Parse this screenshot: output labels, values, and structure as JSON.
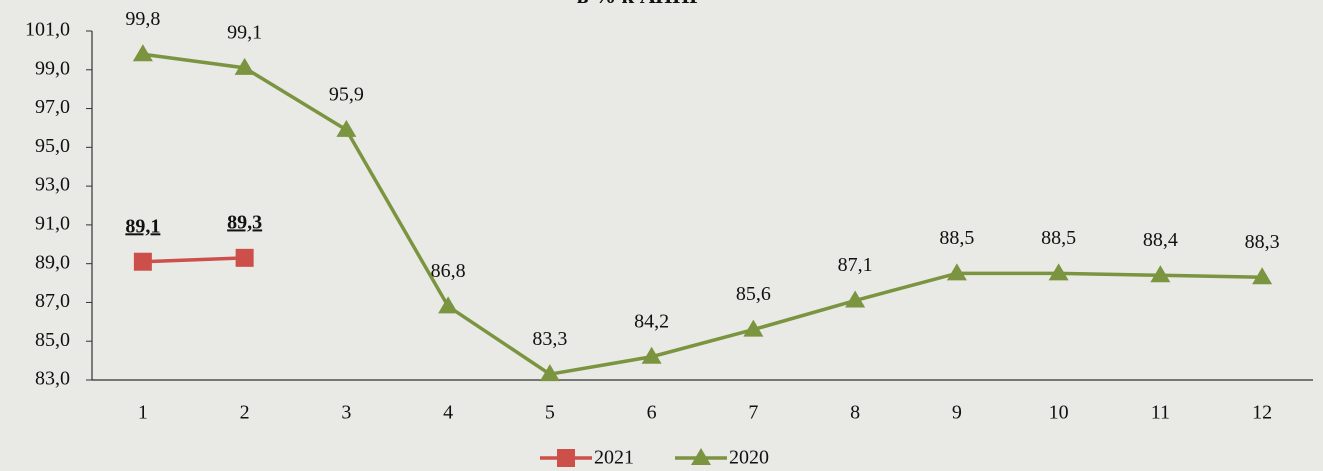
{
  "chart_data": {
    "type": "line",
    "title": "в % к АППГ",
    "categories": [
      "1",
      "2",
      "3",
      "4",
      "5",
      "6",
      "7",
      "8",
      "9",
      "10",
      "11",
      "12"
    ],
    "series": [
      {
        "name": "2021",
        "color": "#cd4f4a",
        "marker": "square",
        "values": [
          89.1,
          89.3,
          null,
          null,
          null,
          null,
          null,
          null,
          null,
          null,
          null,
          null
        ],
        "value_labels": [
          "89,1",
          "89,3",
          null,
          null,
          null,
          null,
          null,
          null,
          null,
          null,
          null,
          null
        ]
      },
      {
        "name": "2020",
        "color": "#7a9440",
        "marker": "triangle",
        "values": [
          99.8,
          99.1,
          95.9,
          86.8,
          83.3,
          84.2,
          85.6,
          87.1,
          88.5,
          88.5,
          88.4,
          88.3
        ],
        "value_labels": [
          "99,8",
          "99,1",
          "95,9",
          "86,8",
          "83,3",
          "84,2",
          "85,6",
          "87,1",
          "88,5",
          "88,5",
          "88,4",
          "88,3"
        ]
      }
    ],
    "ylim": [
      83,
      101
    ],
    "yticks": [
      {
        "value": 83,
        "label": "83,0"
      },
      {
        "value": 85,
        "label": "85,0"
      },
      {
        "value": 87,
        "label": "87,0"
      },
      {
        "value": 89,
        "label": "89,0"
      },
      {
        "value": 91,
        "label": "91,0"
      },
      {
        "value": 93,
        "label": "93,0"
      },
      {
        "value": 95,
        "label": "95,0"
      },
      {
        "value": 97,
        "label": "97,0"
      },
      {
        "value": 99,
        "label": "99,0"
      },
      {
        "value": 101,
        "label": "101,0"
      }
    ],
    "grid": false,
    "legend": "bottom"
  }
}
